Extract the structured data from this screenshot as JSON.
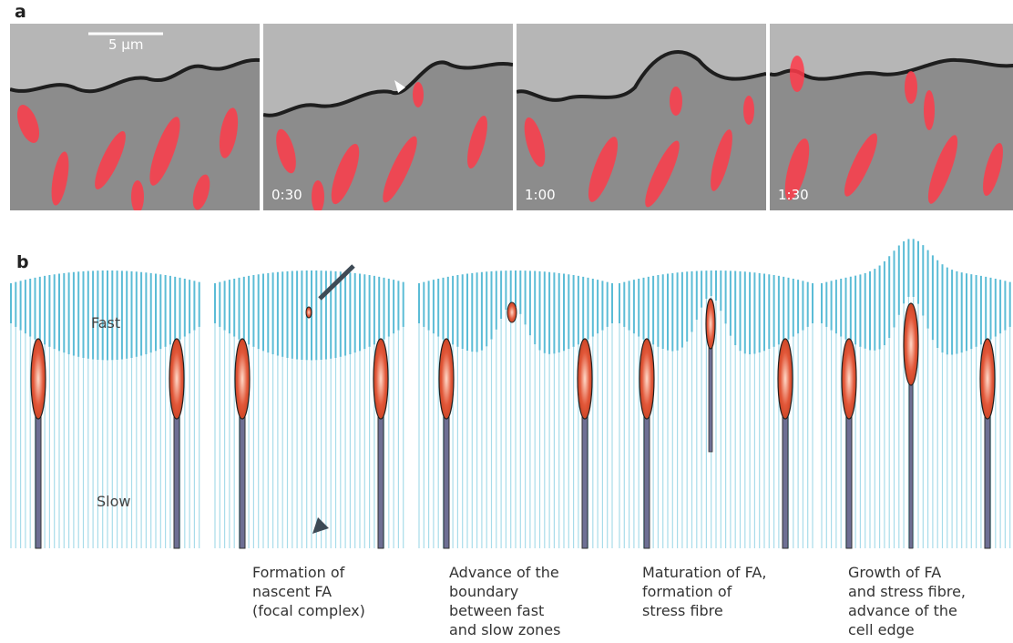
{
  "panel_a": {
    "label": "a",
    "scale_bar": "5 μm",
    "frames": [
      {
        "timestamp": ""
      },
      {
        "timestamp": "0:30"
      },
      {
        "timestamp": "1:00"
      },
      {
        "timestamp": "1:30"
      }
    ]
  },
  "panel_b": {
    "label": "b",
    "fast_label": "Fast",
    "slow_label": "Slow",
    "captions": [
      "Formation of\nnascent FA\n(focal complex)",
      "Advance of the\nboundary\nbetween fast\nand slow zones",
      "Maturation of FA,\nformation of\nstress fibre",
      "Growth of FA\nand stress fibre,\nadvance of the\ncell edge"
    ]
  },
  "colors": {
    "fast_lines": "#5bbcd6",
    "slow_lines": "#a8dcea",
    "adhesion": "#e2583a",
    "stress_fibre": "#6e6f94",
    "arrow": "#3e4a55",
    "fluorescence": "#ff3b4a"
  }
}
